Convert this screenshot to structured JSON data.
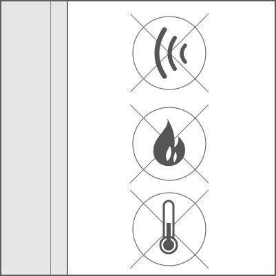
{
  "symbols": [
    {
      "name": "no-radio-waves",
      "icon": "radio-waves-icon"
    },
    {
      "name": "no-fire",
      "icon": "flame-icon"
    },
    {
      "name": "no-temperature",
      "icon": "thermometer-icon"
    }
  ],
  "colors": {
    "frame": "#5c5c5c",
    "panel": "#e6e6e6",
    "stroke": "#6b6b6b",
    "glyph": "#555555"
  }
}
